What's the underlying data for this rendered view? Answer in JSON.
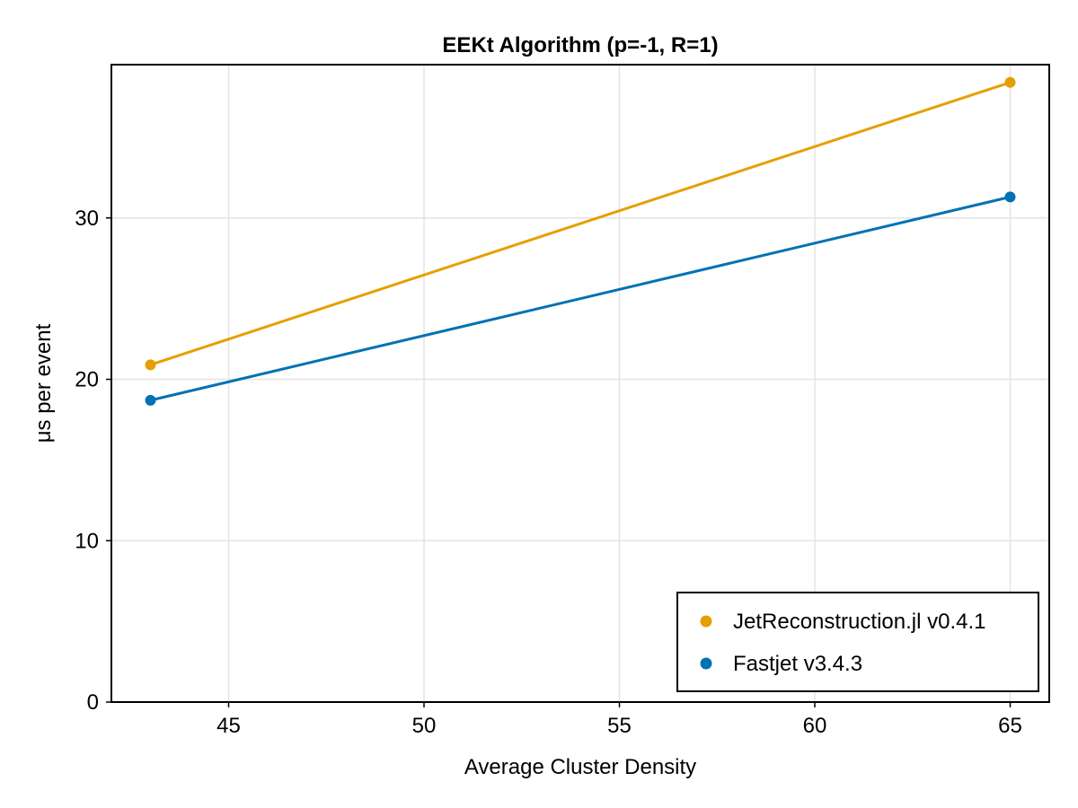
{
  "chart_data": {
    "type": "line",
    "title": "EEKt Algorithm (p=-1, R=1)",
    "xlabel": "Average Cluster Density",
    "ylabel": "μs per event",
    "xlim": [
      42,
      66
    ],
    "ylim": [
      0,
      39.5
    ],
    "x_ticks": [
      45,
      50,
      55,
      60,
      65
    ],
    "y_ticks": [
      0,
      10,
      20,
      30
    ],
    "grid": true,
    "legend_position": "bottom-right",
    "series": [
      {
        "name": "JetReconstruction.jl v0.4.1",
        "color": "#e69f00",
        "x": [
          43,
          65
        ],
        "y": [
          20.9,
          38.4
        ]
      },
      {
        "name": "Fastjet v3.4.3",
        "color": "#0072b2",
        "x": [
          43,
          65
        ],
        "y": [
          18.7,
          31.3
        ]
      }
    ]
  }
}
